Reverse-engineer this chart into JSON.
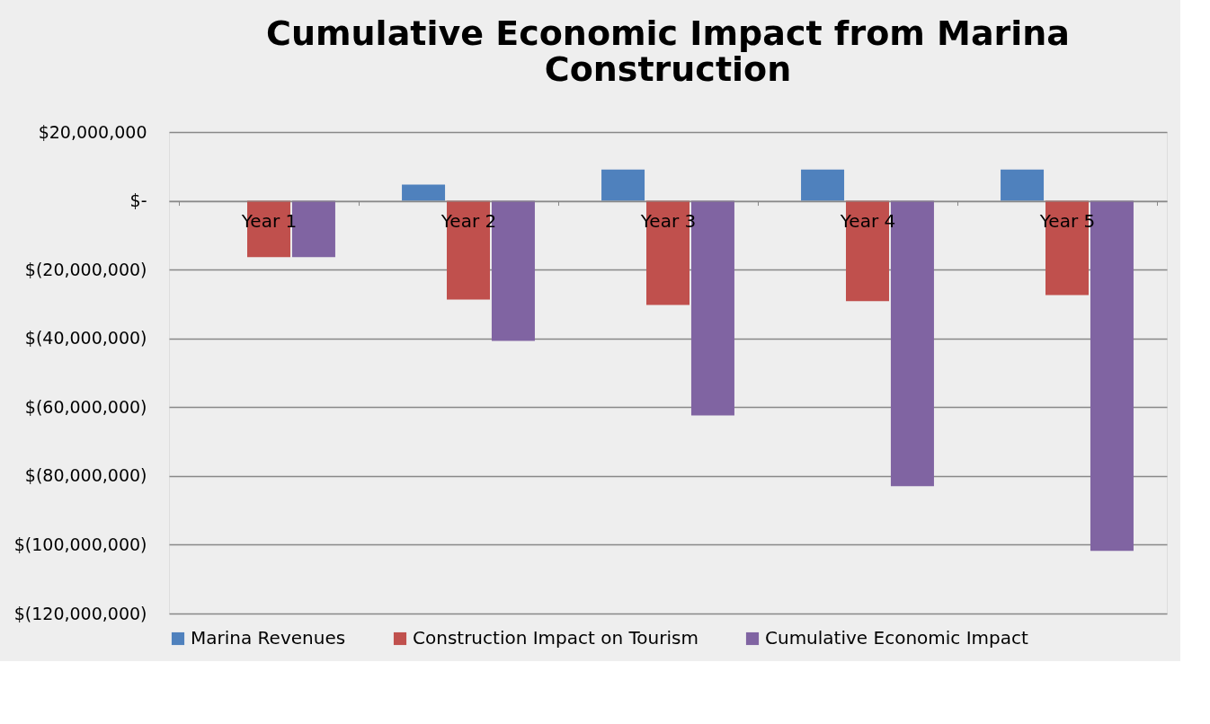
{
  "chart_data": {
    "type": "bar",
    "title": "Cumulative Economic Impact from Marina Construction",
    "categories": [
      "Year 1",
      "Year 2",
      "Year 3",
      "Year 4",
      "Year 5"
    ],
    "series": [
      {
        "name": "Marina Revenues",
        "color": "#4f81bd",
        "values": [
          0,
          4700000,
          9100000,
          9100000,
          9100000
        ]
      },
      {
        "name": "Construction Impact on Tourism",
        "color": "#c0504d",
        "values": [
          -16400000,
          -28700000,
          -30300000,
          -29200000,
          -27400000
        ]
      },
      {
        "name": "Cumulative Economic Impact",
        "color": "#8064a2",
        "values": [
          -16400000,
          -40700000,
          -62400000,
          -83000000,
          -101800000
        ]
      }
    ],
    "ylim": [
      -120000000,
      20000000
    ],
    "yticks": [
      {
        "value": 20000000,
        "label": "$20,000,000"
      },
      {
        "value": 0,
        "label": "$-"
      },
      {
        "value": -20000000,
        "label": "$(20,000,000)"
      },
      {
        "value": -40000000,
        "label": "$(40,000,000)"
      },
      {
        "value": -60000000,
        "label": "$(60,000,000)"
      },
      {
        "value": -80000000,
        "label": "$(80,000,000)"
      },
      {
        "value": -100000000,
        "label": "$(100,000,000)"
      },
      {
        "value": -120000000,
        "label": "$(120,000,000)"
      }
    ],
    "grid": "y",
    "legend": "bottom"
  }
}
